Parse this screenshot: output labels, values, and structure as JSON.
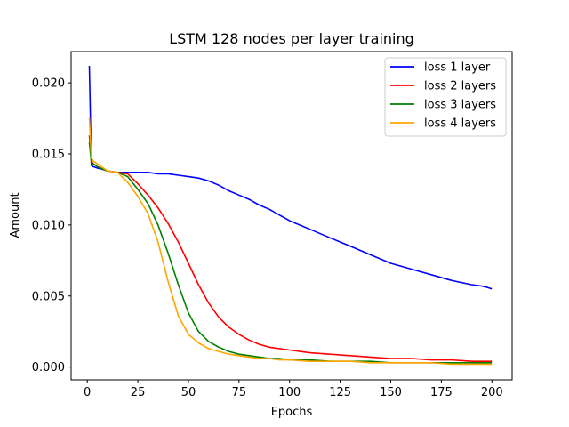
{
  "chart_data": {
    "type": "line",
    "title": "LSTM 128 nodes per layer training",
    "xlabel": "Epochs",
    "ylabel": "Amount",
    "xlim": [
      -8,
      210
    ],
    "ylim": [
      -0.0009,
      0.0222
    ],
    "xticks": [
      0,
      25,
      50,
      75,
      100,
      125,
      150,
      175,
      200
    ],
    "yticks": [
      0.0,
      0.005,
      0.01,
      0.015,
      0.02
    ],
    "ytick_labels": [
      "0.000",
      "0.005",
      "0.010",
      "0.015",
      "0.020"
    ],
    "grid": false,
    "legend_position": "top-right",
    "x": [
      1,
      2,
      3,
      5,
      8,
      10,
      15,
      20,
      25,
      30,
      35,
      40,
      45,
      50,
      55,
      60,
      65,
      70,
      75,
      80,
      85,
      90,
      95,
      100,
      110,
      120,
      130,
      140,
      150,
      160,
      170,
      180,
      190,
      195,
      198,
      200
    ],
    "series": [
      {
        "name": "loss 1 layer",
        "color": "#0000ff",
        "values": [
          0.0212,
          0.0142,
          0.0141,
          0.014,
          0.0139,
          0.0138,
          0.0137,
          0.0137,
          0.0137,
          0.0137,
          0.0136,
          0.0136,
          0.0135,
          0.0134,
          0.0133,
          0.0131,
          0.0128,
          0.0124,
          0.0121,
          0.0118,
          0.0114,
          0.0111,
          0.0107,
          0.0103,
          0.0097,
          0.0091,
          0.0085,
          0.0079,
          0.0073,
          0.0069,
          0.0065,
          0.0061,
          0.0058,
          0.0057,
          0.0056,
          0.0055
        ]
      },
      {
        "name": "loss 2 layers",
        "color": "#ff0000",
        "values": [
          0.0163,
          0.0145,
          0.0143,
          0.0141,
          0.0139,
          0.0138,
          0.0137,
          0.0136,
          0.0129,
          0.0121,
          0.0112,
          0.0101,
          0.0088,
          0.0073,
          0.0058,
          0.0045,
          0.0035,
          0.0028,
          0.0023,
          0.0019,
          0.0016,
          0.0014,
          0.0013,
          0.0012,
          0.001,
          0.0009,
          0.0008,
          0.0007,
          0.0006,
          0.0006,
          0.0005,
          0.0005,
          0.0004,
          0.0004,
          0.0004,
          0.0004
        ]
      },
      {
        "name": "loss 3 layers",
        "color": "#008000",
        "values": [
          0.0158,
          0.0144,
          0.0143,
          0.0141,
          0.0139,
          0.0138,
          0.0137,
          0.0134,
          0.0125,
          0.0115,
          0.01,
          0.008,
          0.0058,
          0.0038,
          0.0025,
          0.0018,
          0.0014,
          0.0011,
          0.0009,
          0.0008,
          0.0007,
          0.0006,
          0.0006,
          0.0005,
          0.0005,
          0.0004,
          0.0004,
          0.0004,
          0.0003,
          0.0003,
          0.0003,
          0.0003,
          0.0003,
          0.0003,
          0.0003,
          0.0003
        ]
      },
      {
        "name": "loss 4 layers",
        "color": "#ffa500",
        "values": [
          0.0176,
          0.0147,
          0.0145,
          0.0143,
          0.014,
          0.0138,
          0.0137,
          0.013,
          0.012,
          0.0108,
          0.0088,
          0.006,
          0.0036,
          0.0023,
          0.0017,
          0.0013,
          0.0011,
          0.0009,
          0.0008,
          0.0007,
          0.0006,
          0.0006,
          0.0005,
          0.0005,
          0.0004,
          0.0004,
          0.0004,
          0.0003,
          0.0003,
          0.0003,
          0.0003,
          0.0002,
          0.0002,
          0.0002,
          0.0002,
          0.0002
        ]
      }
    ]
  }
}
